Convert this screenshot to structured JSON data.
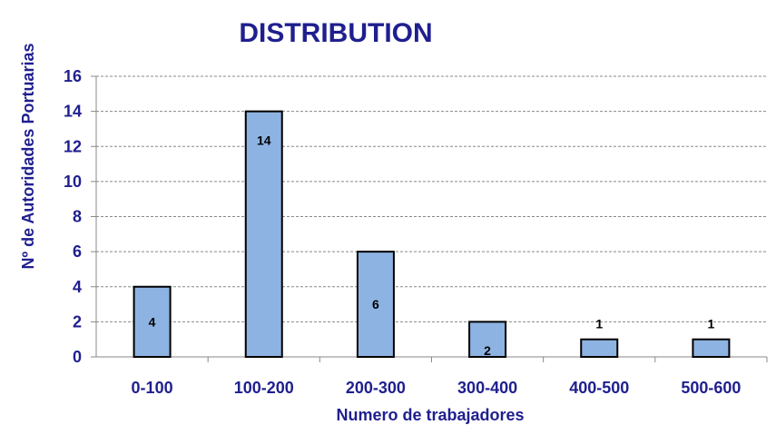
{
  "chart_data": {
    "type": "bar",
    "title": "DISTRIBUTION",
    "xlabel": "Numero de trabajadores",
    "ylabel": "Nº de Autoridades Portuarias",
    "categories": [
      "0-100",
      "100-200",
      "200-300",
      "300-400",
      "400-500",
      "500-600"
    ],
    "values": [
      4,
      14,
      6,
      2,
      1,
      1
    ],
    "data_labels": [
      "4",
      "14",
      "6",
      "2",
      "1",
      "1"
    ],
    "yticks": [
      "0",
      "2",
      "4",
      "6",
      "8",
      "10",
      "12",
      "14",
      "16"
    ],
    "ylim": [
      0,
      16
    ],
    "grid": "horizontal dashed",
    "legend": "none",
    "colors": {
      "bar_fill": "#8db3e2",
      "bar_stroke": "#000000",
      "text": "#1f1f8f",
      "grid": "#888888",
      "axis": "#888888"
    }
  }
}
